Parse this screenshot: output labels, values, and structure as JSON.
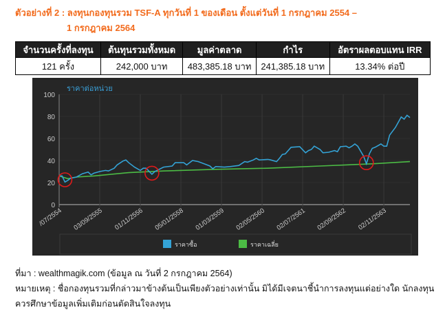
{
  "heading": {
    "line1": "ตัวอย่างที่ 2 : ลงทุนกองทุนรวม TSF-A ทุกวันที่ 1 ของเดือน ตั้งแต่วันที่ 1 กรกฎาคม 2554 –",
    "line2": "1 กรกฎาคม 2564"
  },
  "summary_table": {
    "headers": [
      "จำนวนครั้งที่ลงทุน",
      "ต้นทุนรวมทั้งหมด",
      "มูลค่าตลาด",
      "กำไร",
      "อัตราผลตอบแทน IRR"
    ],
    "row": [
      "121 ครั้ง",
      "242,000 บาท",
      "483,385.18 บาท",
      "241,385.18 บาท",
      "13.34% ต่อปี"
    ]
  },
  "chart_data": {
    "type": "line",
    "title": "ราคาต่อหน่วย",
    "ylim": [
      0,
      100
    ],
    "yticks": [
      "0",
      "20",
      "40",
      "60",
      "80",
      "100"
    ],
    "xticks": [
      "/07/2554",
      "03/09/2555",
      "01/11/2556",
      "05/01/2558",
      "01/03/2559",
      "02/05/2560",
      "02/07/2561",
      "02/09/2562",
      "02/11/2563"
    ],
    "grid": true,
    "legend": "bottom",
    "colors": {
      "buy": "#34a3d6",
      "avg": "#4cbc45",
      "markers": "#e01b1b"
    },
    "series": [
      {
        "name": "ราคาซื้อ",
        "points": [
          [
            "07/2554",
            26
          ],
          [
            "08/2554",
            26
          ],
          [
            "09/2554",
            20.5
          ],
          [
            "10/2554",
            22
          ],
          [
            "11/2554",
            24
          ],
          [
            "01/2555",
            25
          ],
          [
            "03/2555",
            28
          ],
          [
            "05/2555",
            29.5
          ],
          [
            "06/2555",
            27
          ],
          [
            "07/2555",
            28.5
          ],
          [
            "09/2555",
            30
          ],
          [
            "11/2555",
            31
          ],
          [
            "12/2555",
            30.5
          ],
          [
            "02/2556",
            33
          ],
          [
            "03/2556",
            36
          ],
          [
            "05/2556",
            39.5
          ],
          [
            "06/2556",
            40.5
          ],
          [
            "07/2556",
            38
          ],
          [
            "09/2556",
            34
          ],
          [
            "11/2556",
            31
          ],
          [
            "12/2556",
            33
          ],
          [
            "01/2557",
            33
          ],
          [
            "03/2557",
            27.5
          ],
          [
            "04/2557",
            30
          ],
          [
            "07/2557",
            34
          ],
          [
            "10/2557",
            35
          ],
          [
            "11/2557",
            38
          ],
          [
            "02/2558",
            38
          ],
          [
            "03/2558",
            36
          ],
          [
            "05/2558",
            40
          ],
          [
            "07/2558",
            39
          ],
          [
            "09/2558",
            37
          ],
          [
            "11/2558",
            35
          ],
          [
            "12/2558",
            32.5
          ],
          [
            "01/2559",
            34.5
          ],
          [
            "04/2559",
            34
          ],
          [
            "06/2559",
            34.5
          ],
          [
            "09/2559",
            35.5
          ],
          [
            "11/2559",
            39
          ],
          [
            "12/2559",
            38.5
          ],
          [
            "02/2560",
            40.5
          ],
          [
            "03/2560",
            42
          ],
          [
            "04/2560",
            40.5
          ],
          [
            "07/2560",
            41
          ],
          [
            "08/2560",
            40.5
          ],
          [
            "10/2560",
            39
          ],
          [
            "11/2560",
            42
          ],
          [
            "12/2560",
            45.5
          ],
          [
            "01/2561",
            46
          ],
          [
            "02/2561",
            49
          ],
          [
            "03/2561",
            52
          ],
          [
            "06/2561",
            52.5
          ],
          [
            "08/2561",
            47
          ],
          [
            "09/2561",
            49
          ],
          [
            "10/2561",
            50
          ],
          [
            "11/2561",
            53
          ],
          [
            "01/2562",
            50
          ],
          [
            "02/2562",
            47
          ],
          [
            "04/2562",
            47.5
          ],
          [
            "06/2562",
            49
          ],
          [
            "07/2562",
            48
          ],
          [
            "08/2562",
            52.5
          ],
          [
            "10/2562",
            53
          ],
          [
            "11/2562",
            51.5
          ],
          [
            "12/2562",
            53
          ],
          [
            "01/2563",
            55
          ],
          [
            "02/2563",
            53
          ],
          [
            "04/2563",
            44
          ],
          [
            "05/2563",
            37
          ],
          [
            "06/2563",
            46
          ],
          [
            "07/2563",
            51
          ],
          [
            "08/2563",
            52
          ],
          [
            "10/2563",
            55
          ],
          [
            "11/2563",
            53
          ],
          [
            "12/2563",
            53
          ],
          [
            "01/2564",
            63
          ],
          [
            "03/2564",
            70
          ],
          [
            "05/2564",
            79.5
          ],
          [
            "06/2564",
            77.5
          ],
          [
            "07/2564",
            81
          ],
          [
            "08/2564",
            79
          ]
        ]
      },
      {
        "name": "ราคาเฉลี่ย",
        "points": [
          [
            "07/2554",
            26
          ],
          [
            "10/2554",
            23.5
          ],
          [
            "01/2555",
            25
          ],
          [
            "07/2555",
            26
          ],
          [
            "07/2556",
            29
          ],
          [
            "07/2557",
            30.5
          ],
          [
            "01/2559",
            32
          ],
          [
            "07/2560",
            33
          ],
          [
            "01/2562",
            35
          ],
          [
            "07/2563",
            37
          ],
          [
            "08/2564",
            39
          ]
        ]
      }
    ],
    "annotations": [
      "red circles marking dips at 09/2554, 03/2557, 05/2563"
    ]
  },
  "notes": {
    "source": "ที่มา : wealthmagik.com (ข้อมูล ณ วันที่ 2 กรกฎาคม 2564)",
    "remark1": "หมายเหตุ : ชื่อกองทุนรวมที่กล่าวมาข้างต้นเป็นเพียงตัวอย่างเท่านั้น มิได้มีเจตนาชี้นำการลงทุนแต่อย่างใด นักลงทุน",
    "remark2": "ควรศึกษาข้อมูลเพิ่มเติมก่อนตัดสินใจลงทุน"
  }
}
